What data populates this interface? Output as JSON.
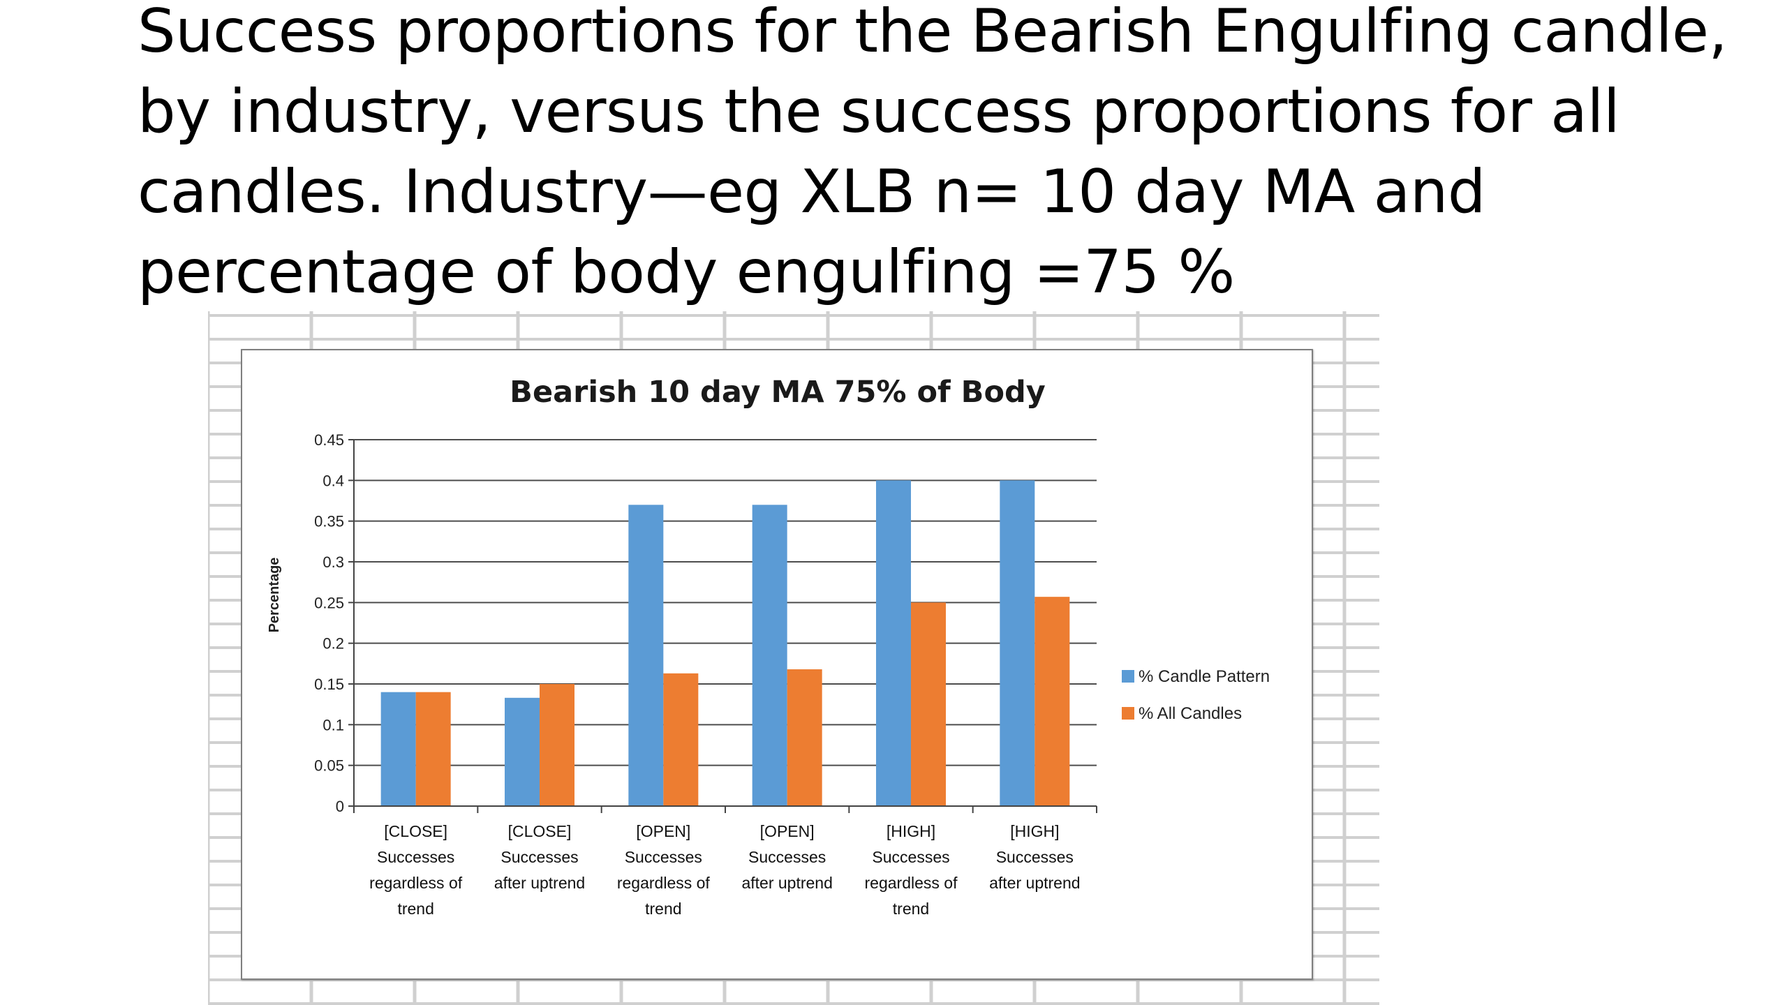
{
  "slide": {
    "title": "Success proportions for the Bearish Engulfing candle, by industry, versus the success proportions for all candles. Industry—eg XLB n= 10 day MA and percentage of body engulfing =75 %"
  },
  "colors": {
    "series1": "#5b9bd5",
    "series2": "#ed7d31",
    "gridline": "#4d4d4d",
    "sheet_grid": "#d0d0d0"
  },
  "chart_data": {
    "type": "bar",
    "title": "Bearish 10 day MA 75% of Body",
    "xlabel": "",
    "ylabel": "Percentage",
    "ylim": [
      0,
      0.45
    ],
    "yticks": [
      "0",
      "0.05",
      "0.1",
      "0.15",
      "0.2",
      "0.25",
      "0.3",
      "0.35",
      "0.4",
      "0.45"
    ],
    "grid": true,
    "legend_position": "right",
    "categories": [
      [
        "[CLOSE]",
        "Successes",
        "regardless of",
        "trend"
      ],
      [
        "[CLOSE]",
        "Successes",
        "after uptrend"
      ],
      [
        "[OPEN]",
        "Successes",
        "regardless of",
        "trend"
      ],
      [
        "[OPEN]",
        "Successes",
        "after uptrend"
      ],
      [
        "[HIGH]",
        "Successes",
        "regardless of",
        "trend"
      ],
      [
        "[HIGH]",
        "Successes",
        "after uptrend"
      ]
    ],
    "series": [
      {
        "name": "% Candle Pattern",
        "values": [
          0.14,
          0.133,
          0.37,
          0.37,
          0.4,
          0.4
        ]
      },
      {
        "name": "% All Candles",
        "values": [
          0.14,
          0.15,
          0.163,
          0.168,
          0.25,
          0.257
        ]
      }
    ]
  }
}
